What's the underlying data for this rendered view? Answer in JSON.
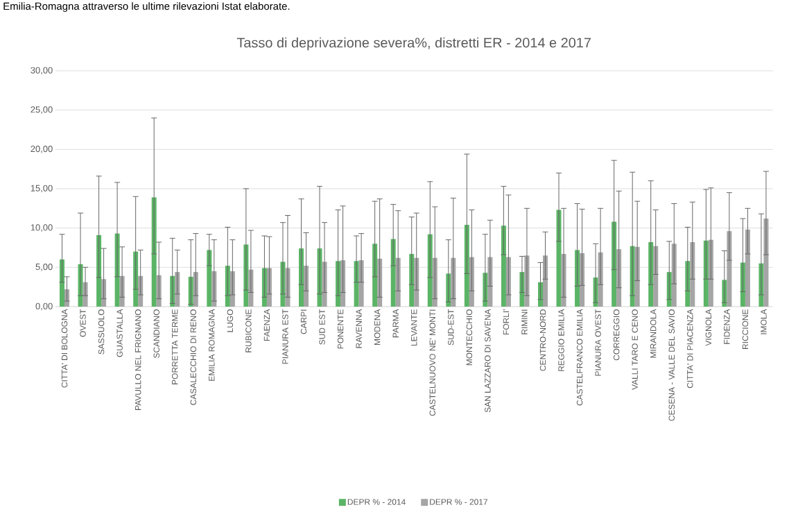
{
  "chart_data": {
    "type": "bar",
    "title": "Tasso di deprivazione severa%, distretti ER - 2014  e  2017",
    "annotations": [
      "Emilia-Romagna attraverso le ultime rilevazioni Istat elaborate."
    ],
    "categories": [
      "CITTA' DI BOLOGNA",
      "OVEST",
      "SASSUOLO",
      "GUASTALLA",
      "PAVULLO NEL FRIGNANO",
      "SCANDIANO",
      "PORRETTA TERME",
      "CASALECCHIO DI RENO",
      "EMILIA ROMAGNA",
      "LUGO",
      "RUBICONE",
      "FAENZA",
      "PIANURA EST",
      "CARPI",
      "SUD EST",
      "PONENTE",
      "RAVENNA",
      "MODENA",
      "PARMA",
      "LEVANTE",
      "CASTELNUOVO NE' MONTI",
      "SUD-EST",
      "MONTECCHIO",
      "SAN LAZZARO DI SAVENA",
      "FORLI'",
      "RIMINI",
      "CENTRO-NORD",
      "REGGIO EMILIA",
      "CASTELFRANCO EMILIA",
      "PIANURA OVEST",
      "CORREGGIO",
      "VALLI TARO E CENO",
      "MIRANDOLA",
      "CESENA - VALLE DEL SAVIO",
      "CITTA' DI PIACENZA",
      "VIGNOLA",
      "FIDENZA",
      "RICCIONE",
      "IMOLA"
    ],
    "series": [
      {
        "name": "DEPR % - 2014",
        "color": "#5bb466",
        "values": [
          6.0,
          5.4,
          9.1,
          9.3,
          7.0,
          13.9,
          3.9,
          3.8,
          7.2,
          5.2,
          7.9,
          4.9,
          5.7,
          7.4,
          7.4,
          5.8,
          5.8,
          8.0,
          8.6,
          6.7,
          9.2,
          4.2,
          10.4,
          4.3,
          10.3,
          4.4,
          3.1,
          12.3,
          7.2,
          3.7,
          10.8,
          7.7,
          8.2,
          4.4,
          5.8,
          8.4,
          3.4,
          5.6,
          5.5
        ],
        "errors": [
          [
            3.1,
            9.2
          ],
          [
            1.4,
            11.9
          ],
          [
            3.7,
            16.6
          ],
          [
            3.8,
            15.8
          ],
          [
            2.2,
            14.0
          ],
          [
            6.7,
            24.0
          ],
          [
            0.4,
            8.7
          ],
          [
            0.3,
            8.5
          ],
          [
            5.2,
            9.2
          ],
          [
            1.4,
            10.1
          ],
          [
            2.1,
            15.0
          ],
          [
            1.2,
            9.0
          ],
          [
            1.6,
            10.7
          ],
          [
            2.8,
            13.7
          ],
          [
            1.6,
            15.3
          ],
          [
            1.4,
            12.3
          ],
          [
            3.1,
            9.0
          ],
          [
            3.8,
            13.4
          ],
          [
            5.2,
            13.0
          ],
          [
            2.8,
            11.4
          ],
          [
            3.7,
            15.9
          ],
          [
            0.6,
            8.5
          ],
          [
            4.2,
            19.4
          ],
          [
            0.7,
            9.2
          ],
          [
            6.6,
            15.3
          ],
          [
            1.8,
            6.4
          ],
          [
            0.9,
            5.6
          ],
          [
            8.3,
            17.0
          ],
          [
            2.6,
            13.1
          ],
          [
            0.5,
            8.0
          ],
          [
            4.7,
            18.6
          ],
          [
            1.4,
            17.1
          ],
          [
            2.8,
            16.0
          ],
          [
            0.9,
            8.3
          ],
          [
            2.0,
            10.1
          ],
          [
            3.5,
            14.9
          ],
          [
            0.5,
            7.1
          ],
          [
            1.9,
            11.2
          ],
          [
            1.5,
            11.8
          ]
        ]
      },
      {
        "name": "DEPR % - 2017",
        "color": "#a5a5a5",
        "values": [
          2.2,
          3.1,
          3.5,
          3.9,
          3.9,
          4.0,
          4.4,
          4.4,
          4.5,
          4.5,
          4.7,
          4.9,
          4.9,
          5.2,
          5.7,
          5.9,
          5.9,
          6.1,
          6.2,
          6.2,
          6.2,
          6.2,
          6.3,
          6.3,
          6.3,
          6.5,
          6.5,
          6.7,
          6.8,
          6.9,
          7.3,
          7.6,
          7.7,
          8.0,
          8.2,
          8.5,
          9.6,
          9.8,
          11.2
        ],
        "errors": [
          [
            0.7,
            3.8
          ],
          [
            1.4,
            5.0
          ],
          [
            1.0,
            7.4
          ],
          [
            1.2,
            7.6
          ],
          [
            1.5,
            7.2
          ],
          [
            1.0,
            8.2
          ],
          [
            1.6,
            7.2
          ],
          [
            1.4,
            9.3
          ],
          [
            0.7,
            8.5
          ],
          [
            1.5,
            8.5
          ],
          [
            1.8,
            9.7
          ],
          [
            1.6,
            8.9
          ],
          [
            1.2,
            11.6
          ],
          [
            2.0,
            9.4
          ],
          [
            1.8,
            10.7
          ],
          [
            1.8,
            12.8
          ],
          [
            3.1,
            9.3
          ],
          [
            1.2,
            13.7
          ],
          [
            2.0,
            12.2
          ],
          [
            2.1,
            11.9
          ],
          [
            1.0,
            12.7
          ],
          [
            1.0,
            13.8
          ],
          [
            2.0,
            12.3
          ],
          [
            2.6,
            11.0
          ],
          [
            1.5,
            14.2
          ],
          [
            1.4,
            12.5
          ],
          [
            3.5,
            9.5
          ],
          [
            1.2,
            12.5
          ],
          [
            2.7,
            12.4
          ],
          [
            2.8,
            12.5
          ],
          [
            2.4,
            14.7
          ],
          [
            3.3,
            13.4
          ],
          [
            4.1,
            12.3
          ],
          [
            2.9,
            13.1
          ],
          [
            3.5,
            13.3
          ],
          [
            3.5,
            15.1
          ],
          [
            5.9,
            14.5
          ],
          [
            6.7,
            12.5
          ],
          [
            6.6,
            17.2
          ]
        ]
      }
    ],
    "ylim": [
      0,
      30
    ],
    "yticks": [
      {
        "value": 0,
        "label": "0,00"
      },
      {
        "value": 5,
        "label": "5,00"
      },
      {
        "value": 10,
        "label": "10,00"
      },
      {
        "value": 15,
        "label": "15,00"
      },
      {
        "value": 20,
        "label": "20,00"
      },
      {
        "value": 25,
        "label": "25,00"
      },
      {
        "value": 30,
        "label": "30,00"
      }
    ],
    "grid": "y",
    "legend": "bottom"
  }
}
